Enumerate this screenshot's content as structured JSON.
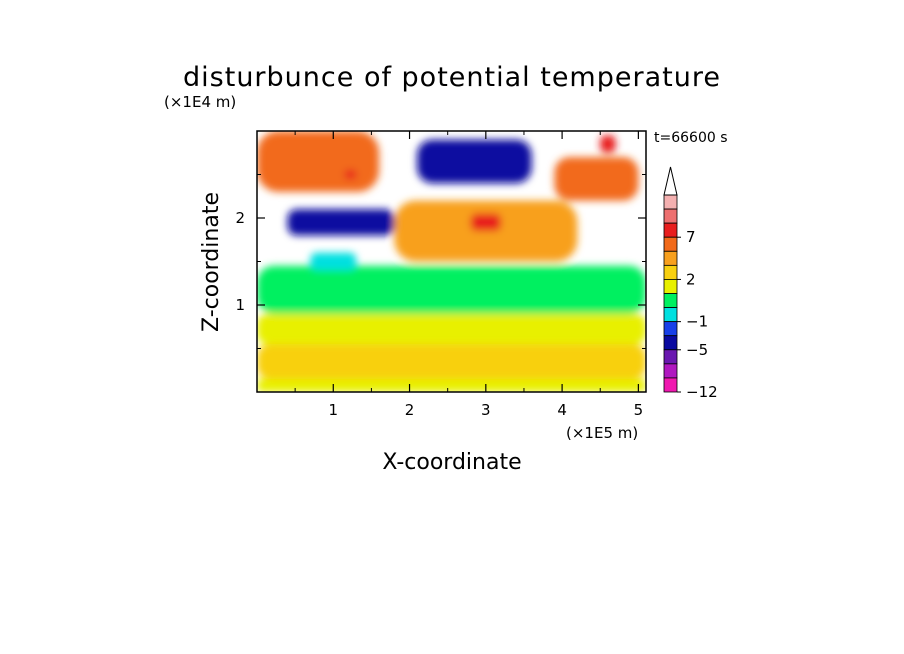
{
  "chart_data": {
    "type": "heatmap",
    "title": "disturbunce of potential temperature",
    "xlabel": "X-coordinate",
    "ylabel": "Z-coordinate",
    "x_unit": "(×1E5 m)",
    "y_unit": "(×1E4 m)",
    "time_label": "t=66600 s",
    "x_ticks": [
      "1",
      "2",
      "3",
      "4",
      "5"
    ],
    "y_ticks": [
      "1",
      "2"
    ],
    "xlim": [
      0,
      5.1
    ],
    "ylim": [
      0,
      3.0
    ],
    "colorbar": {
      "labels": [
        "7",
        "2",
        "−1",
        "−5",
        "−12"
      ],
      "label_values": [
        7,
        2,
        -1,
        -5,
        -12
      ],
      "levels": [
        {
          "value": 9,
          "color": "#f4b0b0"
        },
        {
          "value": 8,
          "color": "#ee7070"
        },
        {
          "value": 7,
          "color": "#e81e1e"
        },
        {
          "value": 5,
          "color": "#f26a1a"
        },
        {
          "value": 3,
          "color": "#f8a01e"
        },
        {
          "value": 2,
          "color": "#f8d010"
        },
        {
          "value": 1,
          "color": "#e8f000"
        },
        {
          "value": 0,
          "color": "#00f060"
        },
        {
          "value": -1,
          "color": "#00e0e0"
        },
        {
          "value": -3,
          "color": "#1840e8"
        },
        {
          "value": -5,
          "color": "#0a0aa0"
        },
        {
          "value": -7,
          "color": "#6a18b0"
        },
        {
          "value": -9,
          "color": "#b018c0"
        },
        {
          "value": -12,
          "color": "#f018b0"
        }
      ]
    },
    "field_regions": [
      {
        "z_range": [
          0.0,
          0.15
        ],
        "x_range": [
          0,
          5.1
        ],
        "value": 1,
        "desc": "bottom band"
      },
      {
        "z_range": [
          0.15,
          0.55
        ],
        "x_range": [
          0,
          5.1
        ],
        "value": 2
      },
      {
        "z_range": [
          0.55,
          0.9
        ],
        "x_range": [
          0,
          5.1
        ],
        "value": 1
      },
      {
        "z_range": [
          0.9,
          1.45
        ],
        "x_range": [
          0,
          5.1
        ],
        "value": 0
      },
      {
        "z_range": [
          1.4,
          1.6
        ],
        "x_range": [
          0.7,
          1.3
        ],
        "value": -1
      },
      {
        "z_range": [
          1.5,
          2.2
        ],
        "x_range": [
          1.8,
          4.2
        ],
        "value": 3
      },
      {
        "z_range": [
          1.85,
          2.05
        ],
        "x_range": [
          2.8,
          3.2
        ],
        "value": 7
      },
      {
        "z_range": [
          1.8,
          2.1
        ],
        "x_range": [
          0.4,
          1.8
        ],
        "value": -5
      },
      {
        "z_range": [
          2.4,
          2.9
        ],
        "x_range": [
          2.1,
          3.6
        ],
        "value": -5
      },
      {
        "z_range": [
          2.3,
          3.0
        ],
        "x_range": [
          0.0,
          1.6
        ],
        "value": 5
      },
      {
        "z_range": [
          2.45,
          2.55
        ],
        "x_range": [
          1.15,
          1.3
        ],
        "value": 7
      },
      {
        "z_range": [
          2.2,
          2.7
        ],
        "x_range": [
          3.9,
          5.0
        ],
        "value": 5
      },
      {
        "z_range": [
          2.75,
          2.95
        ],
        "x_range": [
          4.5,
          4.7
        ],
        "value": 7
      }
    ]
  }
}
